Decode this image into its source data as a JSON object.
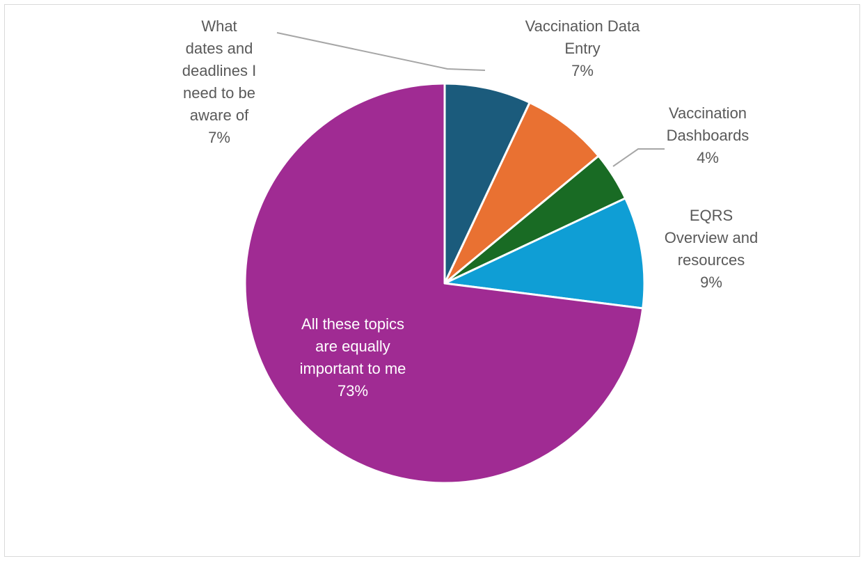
{
  "chart_data": {
    "type": "pie",
    "title": "",
    "legend": "none",
    "start_angle_deg": 0,
    "direction": "clockwise",
    "slices": [
      {
        "name": "What dates and deadlines I need to be aware of",
        "label_lines": [
          "What",
          "dates and",
          "deadlines I",
          "need to be",
          "aware of"
        ],
        "value": 7,
        "value_label": "7%",
        "color": "#1b5b7c"
      },
      {
        "name": "Vaccination Data Entry",
        "label_lines": [
          "Vaccination Data",
          "Entry"
        ],
        "value": 7,
        "value_label": "7%",
        "color": "#e97132"
      },
      {
        "name": "Vaccination Dashboards",
        "label_lines": [
          "Vaccination",
          "Dashboards"
        ],
        "value": 4,
        "value_label": "4%",
        "color": "#196b24"
      },
      {
        "name": "EQRS Overview and resources",
        "label_lines": [
          "EQRS",
          "Overview and",
          "resources"
        ],
        "value": 9,
        "value_label": "9%",
        "color": "#0f9ed5"
      },
      {
        "name": "All these topics are equally important to me",
        "label_lines": [
          "All these topics",
          "are equally",
          "important to me"
        ],
        "value": 73,
        "value_label": "73%",
        "color": "#a02b93"
      }
    ]
  }
}
